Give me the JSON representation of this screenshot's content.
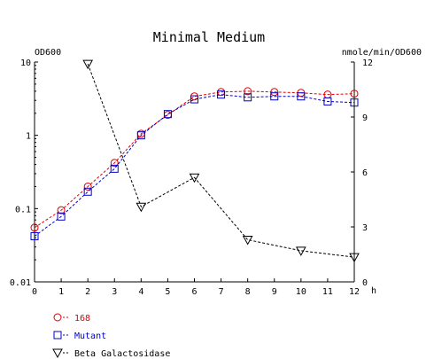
{
  "chart_data": {
    "type": "line",
    "title": "Minimal Medium",
    "ylabel_left": "OD600",
    "ylabel_right": "nmole/min/OD600",
    "xlabel": "h",
    "x_ticks": [
      "0",
      "1",
      "2",
      "3",
      "4",
      "5",
      "6",
      "7",
      "8",
      "9",
      "10",
      "11",
      "12"
    ],
    "xlim": [
      0,
      12
    ],
    "y_left_scale": "log",
    "y_left_lim": [
      0.01,
      10
    ],
    "y_left_ticks": [
      {
        "value": 10,
        "label": "10"
      },
      {
        "value": 1,
        "label": "1"
      },
      {
        "value": 0.1,
        "label": "0.1"
      },
      {
        "value": 0.01,
        "label": "0.01"
      }
    ],
    "y_right_scale": "linear",
    "y_right_lim": [
      0,
      12
    ],
    "y_right_ticks": [
      {
        "value": 12,
        "label": "12"
      },
      {
        "value": 9,
        "label": "9"
      },
      {
        "value": 6,
        "label": "6"
      },
      {
        "value": 3,
        "label": "3"
      },
      {
        "value": 0,
        "label": "0"
      }
    ],
    "grid": false,
    "legend_position": "bottom-left",
    "series": [
      {
        "name": "168",
        "axis": "left",
        "marker": "circle",
        "color": "#dd0000",
        "line": "dashed",
        "x": [
          0,
          1,
          2,
          3,
          4,
          5,
          6,
          7,
          8,
          9,
          10,
          11,
          12
        ],
        "y": [
          0.055,
          0.095,
          0.2,
          0.42,
          1.05,
          1.9,
          3.4,
          3.9,
          4.0,
          3.9,
          3.8,
          3.6,
          3.7
        ]
      },
      {
        "name": "Mutant",
        "axis": "left",
        "marker": "square",
        "color": "#0000cc",
        "line": "dashed",
        "x": [
          0,
          1,
          2,
          3,
          4,
          5,
          6,
          7,
          8,
          9,
          10,
          11,
          12
        ],
        "y": [
          0.042,
          0.078,
          0.17,
          0.35,
          1.0,
          1.95,
          3.1,
          3.6,
          3.3,
          3.4,
          3.4,
          2.9,
          2.8
        ]
      },
      {
        "name": "Beta Galactosidase",
        "axis": "right",
        "marker": "triangle-down",
        "color": "#000000",
        "line": "dashed",
        "x": [
          2,
          4,
          6,
          8,
          10,
          12
        ],
        "y": [
          11.9,
          4.1,
          5.7,
          2.3,
          1.7,
          1.35
        ]
      }
    ]
  }
}
